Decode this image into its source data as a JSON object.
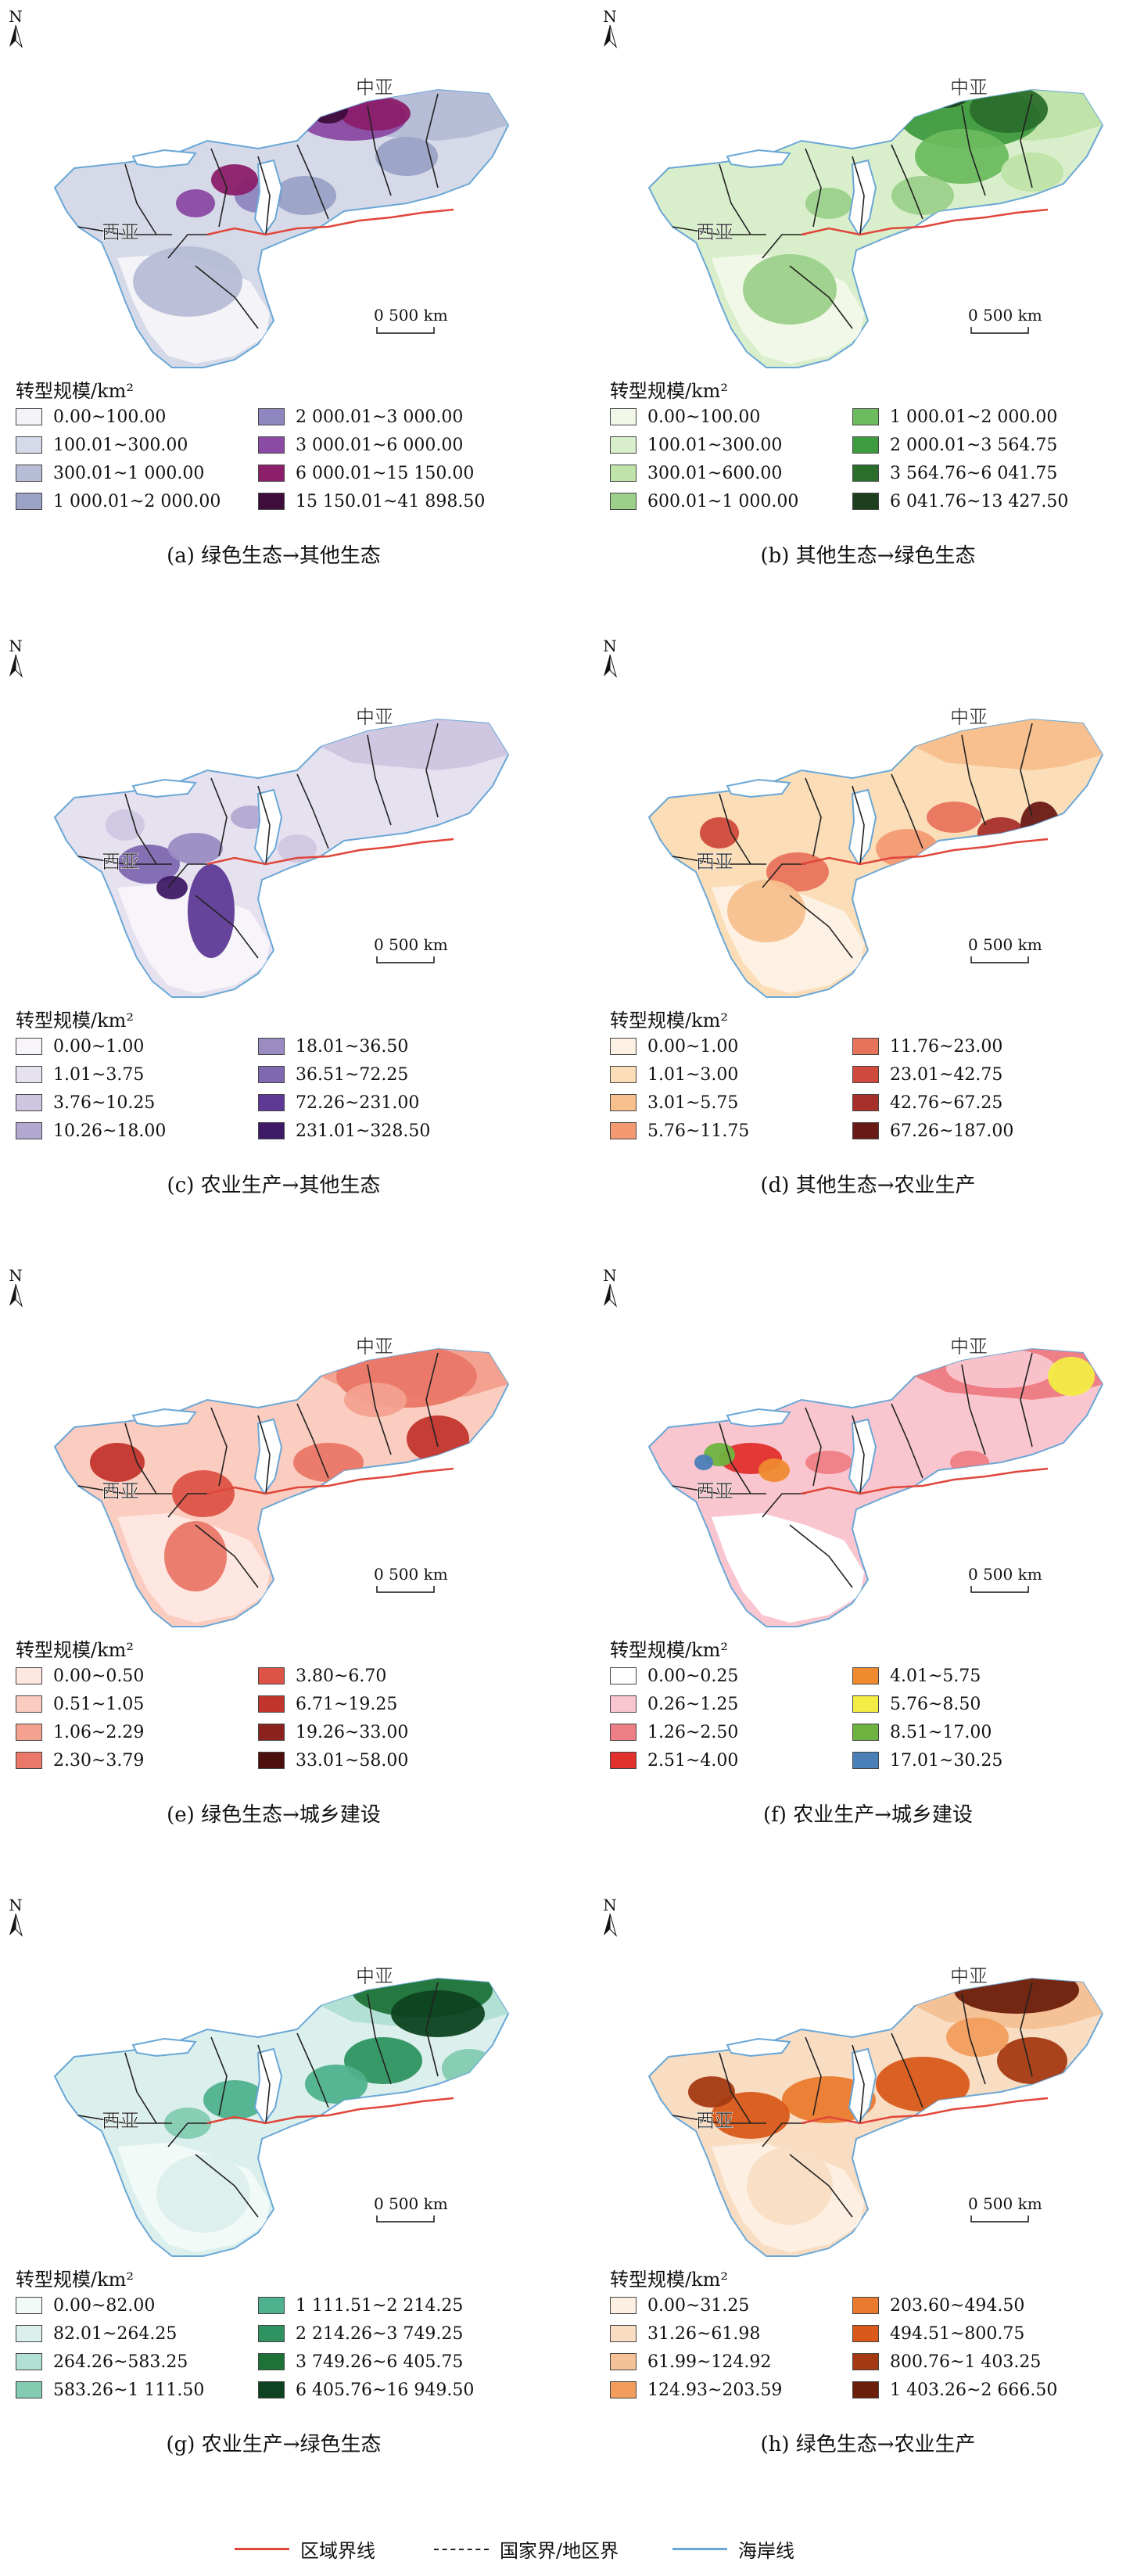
{
  "legend_title": "转型规模/km²",
  "north_label": "N",
  "scale_label": "0  500 km",
  "region_labels": {
    "central": "中亚",
    "west": "西亚"
  },
  "panels": [
    {
      "caption": "(a) 绿色生态→其他生态",
      "base_fill": "#c4c8dc",
      "highlight": "#5a1f74",
      "dark": "#3a0d3d",
      "classes": [
        {
          "label": "0.00~100.00",
          "color": "#f4f4f8"
        },
        {
          "label": "100.01~300.00",
          "color": "#d6dae8"
        },
        {
          "label": "300.01~1 000.00",
          "color": "#b7bdd6"
        },
        {
          "label": "1 000.01~2 000.00",
          "color": "#9aa2c6"
        },
        {
          "label": "2 000.01~3 000.00",
          "color": "#8e86bf"
        },
        {
          "label": "3 000.01~6 000.00",
          "color": "#8b4aa3"
        },
        {
          "label": "6 000.01~15 150.00",
          "color": "#8b1f6a"
        },
        {
          "label": "15 150.01~41 898.50",
          "color": "#3e0d3b"
        }
      ]
    },
    {
      "caption": "(b) 其他生态→绿色生态",
      "base_fill": "#a9d69a",
      "highlight": "#2f7d32",
      "dark": "#1f4d1f",
      "classes": [
        {
          "label": "0.00~100.00",
          "color": "#f1f8e8"
        },
        {
          "label": "100.01~300.00",
          "color": "#d9efcb"
        },
        {
          "label": "300.01~600.00",
          "color": "#bfe3a8"
        },
        {
          "label": "600.01~1 000.00",
          "color": "#9cd08a"
        },
        {
          "label": "1 000.01~2 000.00",
          "color": "#6dbb5f"
        },
        {
          "label": "2 000.01~3 564.75",
          "color": "#3f9b3f"
        },
        {
          "label": "3 564.76~6 041.75",
          "color": "#2b6e2c"
        },
        {
          "label": "6 041.76~13 427.50",
          "color": "#1e3f1e"
        }
      ]
    },
    {
      "caption": "(c) 农业生产→其他生态",
      "base_fill": "#eeebf4",
      "highlight": "#7b52a6",
      "dark": "#3d1f5c",
      "classes": [
        {
          "label": "0.00~1.00",
          "color": "#f7f5fa"
        },
        {
          "label": "1.01~3.75",
          "color": "#e6e1ef"
        },
        {
          "label": "3.76~10.25",
          "color": "#cfc7e1"
        },
        {
          "label": "10.26~18.00",
          "color": "#b3a8d0"
        },
        {
          "label": "18.01~36.50",
          "color": "#9a8cc2"
        },
        {
          "label": "36.51~72.25",
          "color": "#7f68b0"
        },
        {
          "label": "72.26~231.00",
          "color": "#5e3a96"
        },
        {
          "label": "231.01~328.50",
          "color": "#3f1a66"
        }
      ]
    },
    {
      "caption": "(d) 其他生态→农业生产",
      "base_fill": "#fbe5cf",
      "highlight": "#d9573e",
      "dark": "#6b1a14",
      "classes": [
        {
          "label": "0.00~1.00",
          "color": "#fdf1e3"
        },
        {
          "label": "1.01~3.00",
          "color": "#fbddb8"
        },
        {
          "label": "3.01~5.75",
          "color": "#f8c08e"
        },
        {
          "label": "5.76~11.75",
          "color": "#f39a73"
        },
        {
          "label": "11.76~23.00",
          "color": "#e8735b"
        },
        {
          "label": "23.01~42.75",
          "color": "#cf4a3c"
        },
        {
          "label": "42.76~67.25",
          "color": "#a8302a"
        },
        {
          "label": "67.26~187.00",
          "color": "#6a1a16"
        }
      ]
    },
    {
      "caption": "(e) 绿色生态→城乡建设",
      "base_fill": "#f6a692",
      "highlight": "#d0412f",
      "dark": "#7a1c16",
      "classes": [
        {
          "label": "0.00~0.50",
          "color": "#fde7e0"
        },
        {
          "label": "0.51~1.05",
          "color": "#fbccc0"
        },
        {
          "label": "1.06~2.29",
          "color": "#f4a190"
        },
        {
          "label": "2.30~3.79",
          "color": "#ea7767"
        },
        {
          "label": "3.80~6.70",
          "color": "#dd5346"
        },
        {
          "label": "6.71~19.25",
          "color": "#c2352c"
        },
        {
          "label": "19.26~33.00",
          "color": "#8c221d"
        },
        {
          "label": "33.01~58.00",
          "color": "#4d0f0c"
        }
      ]
    },
    {
      "caption": "(f) 农业生产→城乡建设",
      "base_fill": "#ffffff",
      "highlight": "#f4b7c2",
      "dark": "#e03a33",
      "classes": [
        {
          "label": "0.00~0.25",
          "color": "#ffffff"
        },
        {
          "label": "0.26~1.25",
          "color": "#f9c6cf"
        },
        {
          "label": "1.26~2.50",
          "color": "#ef7f86"
        },
        {
          "label": "2.51~4.00",
          "color": "#e2302d"
        },
        {
          "label": "4.01~5.75",
          "color": "#ef8a2f"
        },
        {
          "label": "5.76~8.50",
          "color": "#f2ec45"
        },
        {
          "label": "8.51~17.00",
          "color": "#6eb33f"
        },
        {
          "label": "17.01~30.25",
          "color": "#4a7fb8"
        }
      ]
    },
    {
      "caption": "(g) 农业生产→绿色生态",
      "base_fill": "#d9eee9",
      "highlight": "#2e9a57",
      "dark": "#0f4d26",
      "classes": [
        {
          "label": "0.00~82.00",
          "color": "#f2faf8"
        },
        {
          "label": "82.01~264.25",
          "color": "#dbefec"
        },
        {
          "label": "264.26~583.25",
          "color": "#b3e0d4"
        },
        {
          "label": "583.26~1 111.50",
          "color": "#84cbb2"
        },
        {
          "label": "1 111.51~2 214.25",
          "color": "#4fb18d"
        },
        {
          "label": "2 214.26~3 749.25",
          "color": "#2e9360"
        },
        {
          "label": "3 749.26~6 405.75",
          "color": "#1d7237"
        },
        {
          "label": "6 405.76~16 949.50",
          "color": "#0e4321"
        }
      ]
    },
    {
      "caption": "(h) 绿色生态→农业生产",
      "base_fill": "#f2a765",
      "highlight": "#e0641f",
      "dark": "#8a2a0e",
      "classes": [
        {
          "label": "0.00~31.25",
          "color": "#fdf0e2"
        },
        {
          "label": "31.26~61.98",
          "color": "#f9ddc3"
        },
        {
          "label": "61.99~124.92",
          "color": "#f5c196"
        },
        {
          "label": "124.93~203.59",
          "color": "#f29d5d"
        },
        {
          "label": "203.60~494.50",
          "color": "#ea7a2e"
        },
        {
          "label": "494.51~800.75",
          "color": "#d9581a"
        },
        {
          "label": "800.76~1 403.25",
          "color": "#a53a12"
        },
        {
          "label": "1 403.26~2 666.50",
          "color": "#6b1e0a"
        }
      ]
    }
  ],
  "footer": {
    "region_boundary": "区域界线",
    "national_boundary": "国家界/地区界",
    "coastline": "海岸线",
    "region_color": "#e0463a",
    "national_color": "#222222",
    "coast_color": "#6aa7d6"
  }
}
